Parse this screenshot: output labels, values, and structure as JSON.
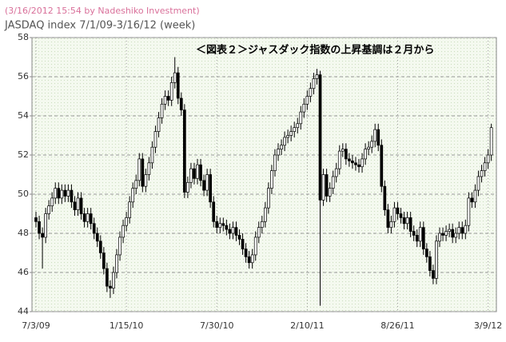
{
  "chart_data": {
    "type": "candlestick",
    "subtitle": "(3/16/2012 15:54 by Nadeshiko Investment)",
    "title": "JASDAQ index  7/1/09-3/16/12 (week)",
    "annotation": "＜図表２＞ジャスダック指数の上昇基調は２月から",
    "categories": [
      "7/3/09",
      null,
      null,
      null,
      null,
      null,
      null,
      null,
      null,
      null,
      null,
      null,
      null,
      null,
      null,
      null,
      null,
      null,
      null,
      null,
      null,
      null,
      null,
      null,
      null,
      null,
      null,
      null,
      "1/15/10",
      null,
      null,
      null,
      null,
      null,
      null,
      null,
      null,
      null,
      null,
      null,
      null,
      null,
      null,
      null,
      null,
      null,
      null,
      null,
      null,
      null,
      null,
      null,
      null,
      null,
      null,
      null,
      "7/30/10",
      null,
      null,
      null,
      null,
      null,
      null,
      null,
      null,
      null,
      null,
      null,
      null,
      null,
      null,
      null,
      null,
      null,
      null,
      null,
      null,
      null,
      null,
      null,
      null,
      null,
      null,
      null,
      "2/10/11",
      null,
      null,
      null,
      null,
      null,
      null,
      null,
      null,
      null,
      null,
      null,
      null,
      null,
      null,
      null,
      null,
      null,
      null,
      null,
      null,
      null,
      null,
      null,
      null,
      null,
      null,
      null,
      "8/26/11",
      null,
      null,
      null,
      null,
      null,
      null,
      null,
      null,
      null,
      null,
      null,
      null,
      null,
      null,
      null,
      null,
      null,
      null,
      null,
      null,
      null,
      null,
      null,
      null,
      null,
      null,
      null,
      "3/9/12",
      null
    ],
    "open": [
      48.8,
      48.6,
      48.0,
      47.8,
      49.0,
      49.4,
      49.8,
      50.3,
      49.8,
      50.2,
      49.9,
      50.2,
      49.6,
      49.2,
      49.8,
      49.0,
      48.6,
      49.0,
      48.5,
      48.0,
      47.6,
      47.0,
      46.2,
      45.3,
      45.2,
      46.0,
      46.9,
      47.8,
      48.4,
      48.8,
      49.6,
      50.3,
      50.7,
      51.8,
      50.4,
      51.0,
      51.6,
      52.4,
      53.2,
      53.9,
      54.6,
      55.0,
      54.8,
      55.7,
      56.2,
      54.9,
      54.3,
      50.1,
      50.6,
      51.3,
      50.8,
      51.5,
      50.7,
      50.2,
      51.0,
      49.6,
      48.6,
      48.3,
      48.5,
      48.4,
      48.2,
      48.0,
      48.3,
      47.9,
      47.7,
      47.2,
      46.8,
      46.5,
      46.9,
      47.8,
      48.3,
      48.6,
      49.3,
      50.3,
      51.2,
      52.0,
      52.3,
      52.5,
      52.9,
      53.0,
      53.2,
      53.4,
      53.6,
      54.2,
      54.6,
      55.0,
      55.4,
      55.9,
      56.1,
      49.7,
      51.0,
      49.9,
      50.3,
      50.9,
      51.3,
      52.2,
      52.3,
      51.8,
      51.7,
      51.6,
      51.5,
      51.4,
      51.8,
      52.3,
      52.4,
      52.7,
      53.3,
      52.5,
      50.4,
      49.2,
      48.3,
      48.6,
      49.3,
      49.0,
      48.8,
      48.5,
      48.8,
      48.1,
      47.9,
      47.6,
      48.3,
      47.2,
      46.8,
      46.1,
      45.7,
      47.6,
      48.0,
      47.9,
      48.1,
      48.2,
      47.8,
      48.0,
      48.3,
      48.0,
      48.4,
      49.8,
      49.6,
      50.2,
      50.9,
      51.2,
      51.6,
      52.0
    ],
    "high": [
      49.1,
      48.9,
      48.3,
      49.3,
      49.7,
      50.1,
      50.6,
      50.6,
      50.5,
      50.5,
      50.5,
      50.5,
      49.9,
      50.1,
      50.1,
      49.3,
      49.3,
      49.3,
      48.8,
      48.3,
      47.9,
      47.3,
      46.5,
      45.6,
      46.3,
      47.2,
      48.1,
      48.7,
      49.1,
      49.9,
      50.6,
      51.0,
      52.1,
      52.1,
      51.3,
      51.9,
      52.7,
      53.5,
      54.2,
      54.9,
      55.3,
      55.3,
      56.0,
      57.0,
      56.5,
      55.2,
      54.6,
      50.9,
      51.6,
      51.6,
      51.8,
      51.8,
      51.0,
      51.3,
      51.3,
      49.9,
      48.9,
      48.8,
      48.8,
      48.7,
      48.5,
      48.6,
      48.6,
      48.2,
      48.0,
      47.5,
      47.1,
      47.2,
      48.1,
      48.6,
      48.9,
      49.6,
      50.6,
      51.5,
      52.3,
      52.6,
      52.8,
      53.2,
      53.3,
      53.5,
      53.7,
      53.9,
      54.5,
      54.9,
      55.3,
      55.7,
      56.2,
      56.4,
      56.3,
      51.3,
      51.3,
      50.6,
      51.2,
      51.6,
      52.5,
      52.6,
      52.6,
      52.1,
      52.0,
      51.9,
      51.8,
      52.1,
      52.6,
      52.7,
      53.0,
      53.6,
      53.6,
      52.8,
      50.7,
      49.5,
      48.9,
      49.6,
      49.6,
      49.3,
      49.1,
      49.1,
      49.1,
      48.4,
      48.2,
      48.6,
      48.6,
      47.5,
      47.1,
      46.4,
      47.9,
      48.3,
      48.3,
      48.4,
      48.5,
      48.5,
      48.3,
      48.6,
      48.6,
      48.7,
      50.1,
      50.1,
      50.5,
      51.2,
      51.5,
      51.9,
      52.3,
      53.6
    ],
    "low": [
      48.3,
      47.7,
      46.2,
      47.5,
      48.7,
      49.1,
      49.5,
      49.5,
      49.5,
      49.6,
      49.6,
      49.3,
      48.9,
      48.9,
      48.7,
      48.3,
      48.3,
      48.2,
      47.7,
      47.3,
      46.7,
      45.9,
      45.0,
      44.7,
      44.9,
      45.7,
      46.6,
      47.5,
      48.1,
      48.5,
      49.3,
      50.0,
      50.4,
      50.1,
      50.1,
      50.7,
      51.3,
      52.1,
      52.9,
      53.6,
      54.3,
      54.5,
      54.5,
      55.4,
      54.6,
      54.0,
      49.8,
      49.8,
      50.3,
      50.5,
      50.5,
      50.4,
      49.9,
      49.9,
      49.3,
      48.3,
      48.0,
      48.0,
      48.1,
      47.9,
      47.7,
      47.7,
      47.6,
      47.4,
      46.9,
      46.5,
      46.2,
      46.2,
      46.6,
      47.5,
      48.0,
      48.3,
      49.0,
      50.0,
      50.9,
      51.7,
      52.0,
      52.2,
      52.6,
      52.7,
      52.9,
      53.1,
      53.3,
      53.9,
      54.3,
      54.7,
      55.1,
      55.6,
      44.3,
      49.4,
      49.6,
      49.6,
      50.0,
      50.6,
      51.0,
      51.9,
      51.5,
      51.4,
      51.3,
      51.2,
      51.1,
      51.1,
      51.5,
      52.0,
      52.1,
      52.4,
      52.2,
      50.1,
      48.9,
      48.0,
      48.0,
      48.3,
      48.7,
      48.5,
      48.2,
      48.2,
      47.8,
      47.6,
      47.3,
      47.3,
      46.9,
      46.5,
      45.8,
      45.4,
      45.4,
      47.3,
      47.6,
      47.6,
      47.8,
      47.5,
      47.5,
      47.7,
      47.7,
      47.7,
      48.1,
      49.3,
      49.3,
      49.9,
      50.6,
      50.9,
      51.3,
      51.7
    ],
    "close": [
      48.6,
      48.0,
      47.8,
      49.0,
      49.4,
      49.8,
      50.3,
      49.8,
      50.2,
      49.9,
      50.2,
      49.6,
      49.2,
      49.8,
      49.0,
      48.6,
      49.0,
      48.5,
      48.0,
      47.6,
      47.0,
      46.2,
      45.3,
      45.2,
      46.0,
      46.9,
      47.8,
      48.4,
      48.8,
      49.6,
      50.3,
      50.7,
      51.8,
      50.4,
      51.0,
      51.6,
      52.4,
      53.2,
      53.9,
      54.6,
      55.0,
      54.8,
      55.7,
      56.2,
      54.9,
      54.3,
      50.1,
      50.6,
      51.3,
      50.8,
      51.5,
      50.7,
      50.2,
      51.0,
      49.6,
      48.6,
      48.3,
      48.5,
      48.4,
      48.2,
      48.0,
      48.3,
      47.9,
      47.7,
      47.2,
      46.8,
      46.5,
      46.9,
      47.8,
      48.3,
      48.6,
      49.3,
      50.3,
      51.2,
      52.0,
      52.3,
      52.5,
      52.9,
      53.0,
      53.2,
      53.4,
      53.6,
      54.2,
      54.6,
      55.0,
      55.4,
      55.9,
      56.1,
      49.7,
      51.0,
      49.9,
      50.3,
      50.9,
      51.3,
      52.2,
      52.3,
      51.8,
      51.7,
      51.6,
      51.5,
      51.4,
      51.8,
      52.3,
      52.4,
      52.7,
      53.3,
      52.5,
      50.4,
      49.2,
      48.3,
      48.6,
      49.3,
      49.0,
      48.8,
      48.5,
      48.8,
      48.1,
      47.9,
      47.6,
      48.3,
      47.2,
      46.8,
      46.1,
      45.7,
      47.6,
      48.0,
      47.9,
      48.1,
      48.2,
      47.8,
      48.0,
      48.3,
      48.0,
      48.4,
      49.8,
      49.6,
      50.2,
      50.9,
      51.2,
      51.6,
      52.0,
      53.4
    ],
    "up_color": "#ffffff",
    "down_color": "#000000",
    "ylim": [
      44,
      58
    ],
    "yticks": [
      44,
      46,
      48,
      50,
      52,
      54,
      56,
      58
    ],
    "grid": true
  }
}
